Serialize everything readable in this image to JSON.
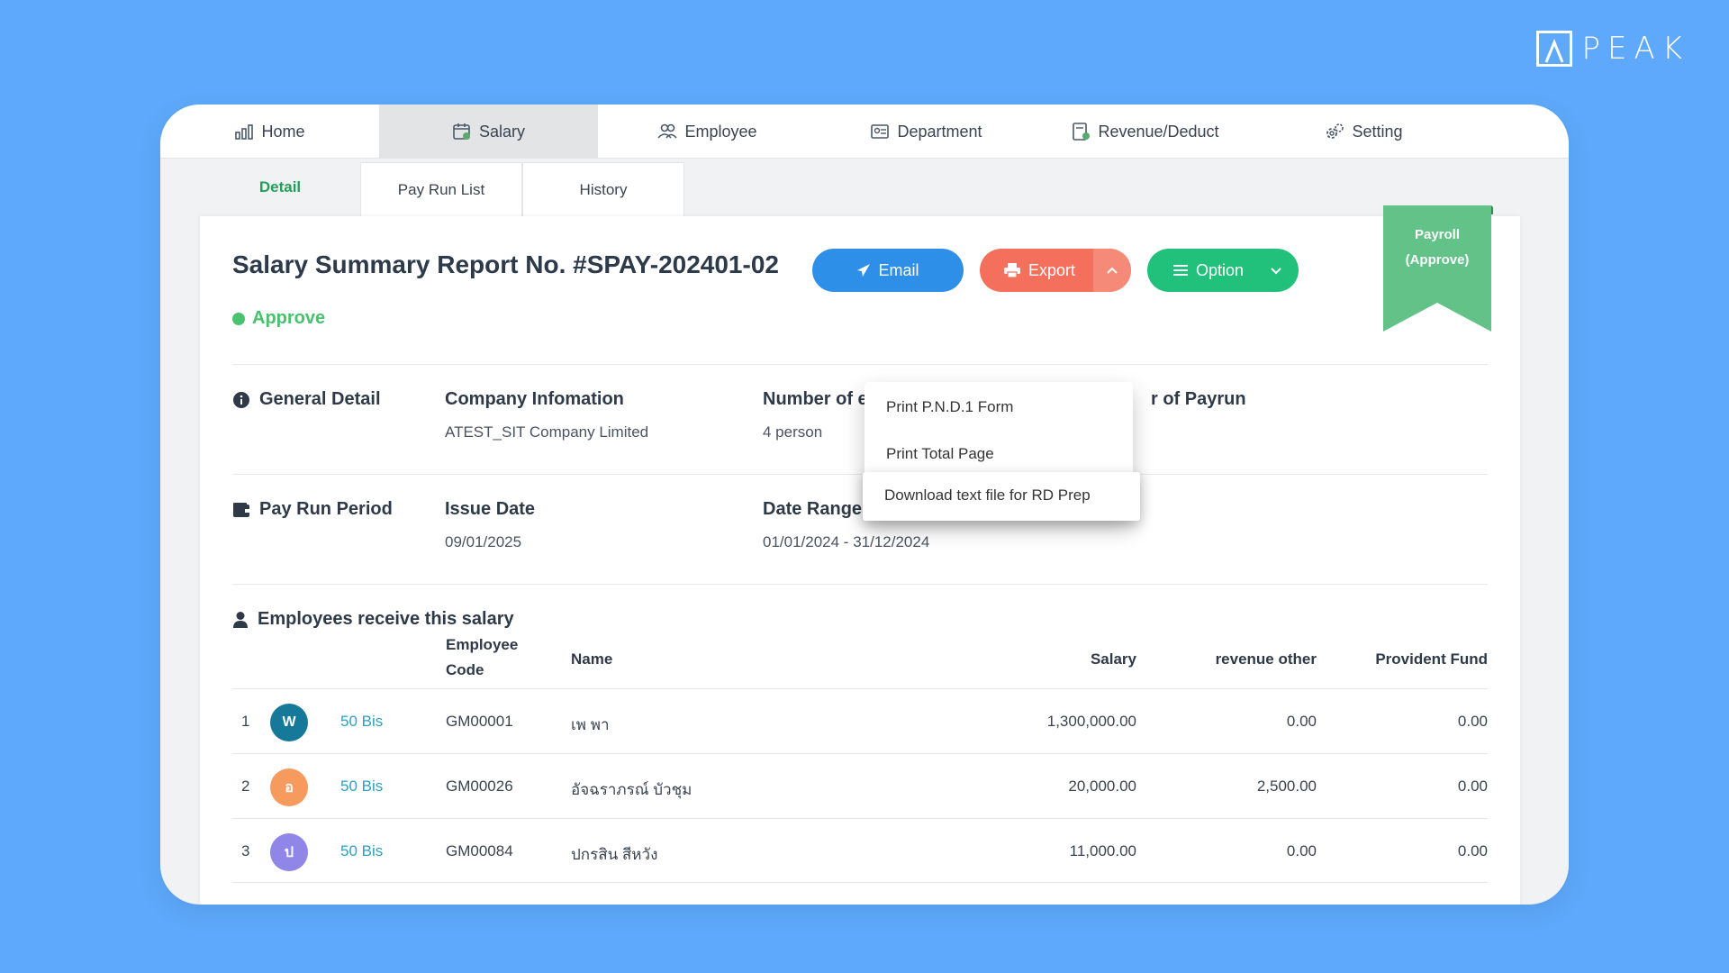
{
  "brand": {
    "name": "PEAK"
  },
  "topnav": [
    {
      "label": "Home",
      "icon": "chart-icon"
    },
    {
      "label": "Salary",
      "icon": "calendar-icon"
    },
    {
      "label": "Employee",
      "icon": "users-icon"
    },
    {
      "label": "Department",
      "icon": "id-card-icon"
    },
    {
      "label": "Revenue/Deduct",
      "icon": "calculator-icon"
    },
    {
      "label": "Setting",
      "icon": "gear-icon"
    }
  ],
  "subtabs": [
    "Detail",
    "Pay Run List",
    "History"
  ],
  "report": {
    "title": "Salary Summary Report No. #SPAY-202401-02",
    "status": "Approve"
  },
  "buttons": {
    "email": "Email",
    "export": "Export",
    "option": "Option"
  },
  "export_menu": [
    "Print P.N.D.1 Form",
    "Print Total Page",
    "Download text file for RD Prep"
  ],
  "ribbon": {
    "line1": "Payroll",
    "line2": "(Approve)"
  },
  "general": {
    "section": "General Detail",
    "company_head": "Company Infomation",
    "company_val": "ATEST_SIT Company Limited",
    "employees_head": "Number of e",
    "employees_val": "4 person",
    "payrun_head": "r of Payrun"
  },
  "period": {
    "section": "Pay Run Period",
    "issue_head": "Issue Date",
    "issue_val": "09/01/2025",
    "range_head": "Date Range",
    "range_val": "01/01/2024 - 31/12/2024"
  },
  "employees": {
    "section": "Employees receive this salary",
    "columns": {
      "code1": "Employee",
      "code2": "Code",
      "name": "Name",
      "salary": "Salary",
      "revenue": "revenue other",
      "fund": "Provident Fund"
    },
    "rows": [
      {
        "no": "1",
        "avatar": "W",
        "color": "#17799a",
        "tag": "50 Bis",
        "code": "GM00001",
        "name": "เพ พา",
        "salary": "1,300,000.00",
        "revenue": "0.00",
        "fund": "0.00"
      },
      {
        "no": "2",
        "avatar": "อ",
        "color": "#f79a5d",
        "tag": "50 Bis",
        "code": "GM00026",
        "name": "อัจฉราภรณ์ บัวชุม",
        "salary": "20,000.00",
        "revenue": "2,500.00",
        "fund": "0.00"
      },
      {
        "no": "3",
        "avatar": "ป",
        "color": "#8f86e8",
        "tag": "50 Bis",
        "code": "GM00084",
        "name": "ปกรสิน สีหวัง",
        "salary": "11,000.00",
        "revenue": "0.00",
        "fund": "0.00"
      }
    ]
  },
  "colors": {
    "background": "#5ea9fb",
    "green": "#21c17b",
    "blue": "#2e8fe8",
    "red": "#f46f5c"
  }
}
